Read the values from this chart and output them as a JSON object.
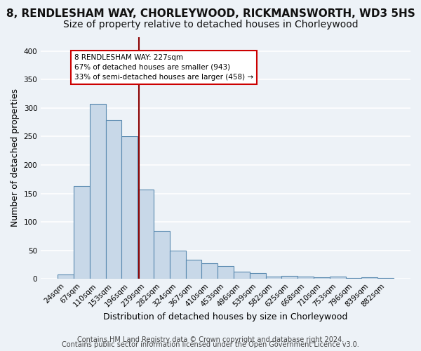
{
  "title": "8, RENDLESHAM WAY, CHORLEYWOOD, RICKMANSWORTH, WD3 5HS",
  "subtitle": "Size of property relative to detached houses in Chorleywood",
  "xlabel": "Distribution of detached houses by size in Chorleywood",
  "ylabel": "Number of detached properties",
  "categories": [
    "24sqm",
    "67sqm",
    "110sqm",
    "153sqm",
    "196sqm",
    "239sqm",
    "282sqm",
    "324sqm",
    "367sqm",
    "410sqm",
    "453sqm",
    "496sqm",
    "539sqm",
    "582sqm",
    "625sqm",
    "668sqm",
    "710sqm",
    "753sqm",
    "796sqm",
    "839sqm",
    "882sqm"
  ],
  "values": [
    8,
    163,
    307,
    279,
    251,
    157,
    84,
    50,
    34,
    28,
    23,
    13,
    10,
    4,
    5,
    4,
    3,
    4,
    1,
    3,
    2
  ],
  "bar_color": "#c8d8e8",
  "bar_edge_color": "#5a8ab0",
  "vline_x": 4.57,
  "vline_color": "#8b0000",
  "annotation_line1": "8 RENDLESHAM WAY: 227sqm",
  "annotation_line2": "67% of detached houses are smaller (943)",
  "annotation_line3": "33% of semi-detached houses are larger (458) →",
  "annotation_box_color": "#ffffff",
  "annotation_box_edge": "#cc0000",
  "footer1": "Contains HM Land Registry data © Crown copyright and database right 2024.",
  "footer2": "Contains public sector information licensed under the Open Government Licence v3.0.",
  "bg_color": "#edf2f7",
  "grid_color": "#ffffff",
  "title_fontsize": 11,
  "subtitle_fontsize": 10,
  "axis_fontsize": 9,
  "tick_fontsize": 7.5,
  "footer_fontsize": 7
}
